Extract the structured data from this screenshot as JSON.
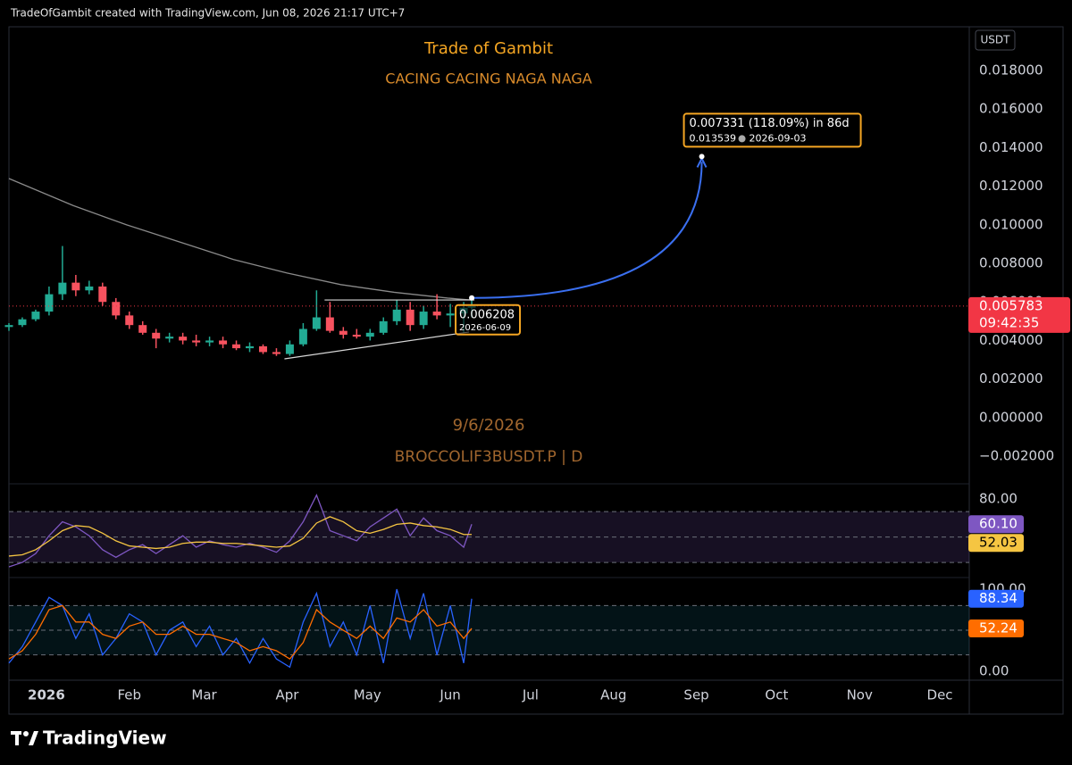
{
  "header": "TradeOfGambit created with TradingView.com, Jun 08, 2026 21:17 UTC+7",
  "footer_logo": "TradingView",
  "chart_data": [
    {
      "type": "candlestick",
      "title": "Trade of Gambit",
      "subtitle": "CACING CACING NAGA NAGA",
      "watermark": [
        "9/6/2026",
        "BROCCOLIF3BUSDT.P | D"
      ],
      "currency": "USDT",
      "x": [
        -14,
        -9,
        -4,
        1,
        6,
        11,
        16,
        21,
        26,
        31,
        36,
        41,
        46,
        51,
        56,
        61,
        66,
        71,
        76,
        81,
        86,
        91,
        96,
        101,
        106,
        111,
        116,
        121,
        126,
        131,
        136,
        141,
        146,
        151,
        156,
        159
      ],
      "open": [
        0.0047,
        0.0048,
        0.0051,
        0.0055,
        0.0064,
        0.007,
        0.0066,
        0.0068,
        0.006,
        0.0053,
        0.0048,
        0.0044,
        0.0041,
        0.0042,
        0.004,
        0.0039,
        0.004,
        0.0038,
        0.0036,
        0.0037,
        0.0034,
        0.0033,
        0.0038,
        0.0046,
        0.0052,
        0.0045,
        0.0043,
        0.0042,
        0.0044,
        0.005,
        0.0056,
        0.0048,
        0.0055,
        0.0053,
        0.0054,
        0.0057
      ],
      "high": [
        0.0049,
        0.0052,
        0.0056,
        0.0068,
        0.0089,
        0.0074,
        0.0071,
        0.007,
        0.0062,
        0.0055,
        0.005,
        0.0046,
        0.0044,
        0.0044,
        0.0043,
        0.0042,
        0.0042,
        0.004,
        0.0039,
        0.0038,
        0.0036,
        0.004,
        0.0049,
        0.0066,
        0.006,
        0.0047,
        0.0046,
        0.0046,
        0.0052,
        0.0061,
        0.006,
        0.0058,
        0.0064,
        0.0059,
        0.006,
        0.0062
      ],
      "low": [
        0.0045,
        0.0047,
        0.005,
        0.0053,
        0.0061,
        0.0063,
        0.0064,
        0.0058,
        0.0051,
        0.0046,
        0.0043,
        0.0036,
        0.0039,
        0.0038,
        0.0037,
        0.0037,
        0.0036,
        0.0035,
        0.0034,
        0.0033,
        0.0032,
        0.0032,
        0.0037,
        0.0045,
        0.0044,
        0.0041,
        0.0041,
        0.004,
        0.0043,
        0.0048,
        0.0045,
        0.0046,
        0.0051,
        0.0047,
        0.0044,
        0.0052
      ],
      "close": [
        0.0048,
        0.0051,
        0.0055,
        0.0064,
        0.007,
        0.0066,
        0.0068,
        0.006,
        0.0053,
        0.0048,
        0.0044,
        0.0041,
        0.0042,
        0.004,
        0.0039,
        0.004,
        0.0038,
        0.0036,
        0.0037,
        0.0034,
        0.0033,
        0.0038,
        0.0046,
        0.0052,
        0.0045,
        0.0043,
        0.0042,
        0.0044,
        0.005,
        0.0056,
        0.0048,
        0.0055,
        0.0053,
        0.0054,
        0.0057,
        0.005783
      ],
      "up_color": "#22ab94",
      "down_color": "#f7525f",
      "ma": {
        "color": "#8a8a8a",
        "x": [
          -14,
          10,
          30,
          50,
          70,
          90,
          110,
          130,
          150,
          159
        ],
        "values": [
          0.0124,
          0.011,
          0.01,
          0.0091,
          0.0082,
          0.0075,
          0.0069,
          0.0065,
          0.0062,
          0.0061
        ]
      },
      "trendlines": [
        {
          "from": [
            104,
            0.0061
          ],
          "to": [
            160,
            0.0061
          ]
        },
        {
          "from": [
            89,
            0.00305
          ],
          "to": [
            158,
            0.00444
          ]
        }
      ],
      "projection": {
        "label": "0.007331 (118.09%) in 86d",
        "color": "#3a6ff0",
        "from": {
          "x": 159,
          "price": 0.006208,
          "date": "2026-06-09"
        },
        "to": {
          "x": 245,
          "price": 0.013539,
          "date": "2026-09-03"
        }
      },
      "countdown": "09:42:35",
      "xlim": [
        -14,
        345
      ],
      "xticks": [
        {
          "value": 0,
          "label": "2026"
        },
        {
          "value": 31,
          "label": "Feb"
        },
        {
          "value": 59,
          "label": "Mar"
        },
        {
          "value": 90,
          "label": "Apr"
        },
        {
          "value": 120,
          "label": "May"
        },
        {
          "value": 151,
          "label": "Jun"
        },
        {
          "value": 181,
          "label": "Jul"
        },
        {
          "value": 212,
          "label": "Aug"
        },
        {
          "value": 243,
          "label": "Sep"
        },
        {
          "value": 273,
          "label": "Oct"
        },
        {
          "value": 304,
          "label": "Nov"
        },
        {
          "value": 334,
          "label": "Dec"
        }
      ],
      "ylim": [
        -0.00334,
        0.02027
      ],
      "yticks": [
        {
          "value": 0.018,
          "label": "0.018000"
        },
        {
          "value": 0.016,
          "label": "0.016000"
        },
        {
          "value": 0.014,
          "label": "0.014000"
        },
        {
          "value": 0.012,
          "label": "0.012000"
        },
        {
          "value": 0.01,
          "label": "0.010000"
        },
        {
          "value": 0.008,
          "label": "0.008000"
        },
        {
          "value": 0.006,
          "label": "0.006000"
        },
        {
          "value": 0.004,
          "label": "0.004000"
        },
        {
          "value": 0.002,
          "label": "0.002000"
        },
        {
          "value": 0,
          "label": "0.000000"
        },
        {
          "value": -0.002,
          "label": "−0.002000"
        }
      ],
      "grid": false
    },
    {
      "type": "line",
      "ylim": [
        19.5,
        89.8
      ],
      "yticks": [
        {
          "value": 80,
          "label": "80.00"
        }
      ],
      "levels": [
        70,
        50,
        30
      ],
      "band_color": "#7e57c2",
      "x": [
        -14,
        -9,
        -4,
        1,
        6,
        11,
        16,
        21,
        26,
        31,
        36,
        41,
        46,
        51,
        56,
        61,
        66,
        71,
        76,
        81,
        86,
        91,
        96,
        101,
        106,
        111,
        116,
        121,
        126,
        131,
        136,
        141,
        146,
        151,
        156,
        159
      ],
      "series": [
        {
          "color": "#7e57c2",
          "values": [
            26.5,
            30,
            37,
            51,
            62,
            58,
            51,
            40,
            34,
            40,
            44,
            37,
            44,
            51,
            42,
            47,
            44,
            42,
            45,
            42,
            38,
            47,
            62,
            83,
            55,
            51,
            47,
            58,
            65,
            72,
            51,
            65,
            55,
            51,
            42,
            60.1
          ],
          "value_labels": [
            null,
            null,
            null,
            null,
            null,
            null,
            null,
            null,
            null,
            null,
            null,
            null,
            null,
            null,
            null,
            null,
            null,
            null,
            null,
            null,
            null,
            null,
            null,
            null,
            null,
            null,
            null,
            null,
            null,
            null,
            null,
            null,
            null,
            null,
            null,
            "60.10"
          ]
        },
        {
          "color": "#f5c542",
          "values": [
            35,
            36,
            40,
            47,
            55,
            59,
            58,
            53,
            47,
            43,
            42,
            41,
            42,
            45,
            46,
            46,
            45,
            45,
            44,
            43,
            42,
            43,
            49,
            61,
            66,
            62,
            55,
            53,
            56,
            60,
            61,
            59,
            58,
            56,
            52,
            52.03
          ],
          "value_labels": [
            null,
            null,
            null,
            null,
            null,
            null,
            null,
            null,
            null,
            null,
            null,
            null,
            null,
            null,
            null,
            null,
            null,
            null,
            null,
            null,
            null,
            null,
            null,
            null,
            null,
            null,
            null,
            null,
            null,
            null,
            null,
            null,
            null,
            null,
            null,
            "52.03"
          ]
        }
      ]
    },
    {
      "type": "line",
      "ylim": [
        -8.7,
        110.9
      ],
      "yticks": [
        {
          "value": 100,
          "label": "100.00"
        },
        {
          "value": 0,
          "label": "0.00"
        }
      ],
      "levels": [
        80,
        50,
        20
      ],
      "band_color": "#0e6a80",
      "x": [
        -14,
        -9,
        -4,
        1,
        6,
        11,
        16,
        21,
        26,
        31,
        36,
        41,
        46,
        51,
        56,
        61,
        66,
        71,
        76,
        81,
        86,
        91,
        96,
        101,
        106,
        111,
        116,
        121,
        126,
        131,
        136,
        141,
        146,
        151,
        156,
        159
      ],
      "series": [
        {
          "color": "#2962ff",
          "values": [
            10,
            30,
            60,
            90,
            80,
            40,
            70,
            20,
            40,
            70,
            60,
            20,
            50,
            60,
            30,
            55,
            20,
            40,
            10,
            40,
            15,
            5,
            60,
            95,
            30,
            60,
            20,
            80,
            10,
            100,
            40,
            95,
            20,
            80,
            10,
            88.34
          ],
          "value_labels": [
            null,
            null,
            null,
            null,
            null,
            null,
            null,
            null,
            null,
            null,
            null,
            null,
            null,
            null,
            null,
            null,
            null,
            null,
            null,
            null,
            null,
            null,
            null,
            null,
            null,
            null,
            null,
            null,
            null,
            null,
            null,
            null,
            null,
            null,
            null,
            "88.34"
          ]
        },
        {
          "color": "#ff6d00",
          "values": [
            15,
            25,
            45,
            75,
            80,
            60,
            60,
            45,
            40,
            55,
            60,
            45,
            45,
            55,
            45,
            45,
            40,
            35,
            25,
            30,
            25,
            15,
            35,
            75,
            60,
            50,
            40,
            55,
            40,
            65,
            60,
            75,
            55,
            60,
            40,
            52.24
          ],
          "value_labels": [
            null,
            null,
            null,
            null,
            null,
            null,
            null,
            null,
            null,
            null,
            null,
            null,
            null,
            null,
            null,
            null,
            null,
            null,
            null,
            null,
            null,
            null,
            null,
            null,
            null,
            null,
            null,
            null,
            null,
            null,
            null,
            null,
            null,
            null,
            null,
            "52.24"
          ]
        }
      ]
    }
  ]
}
